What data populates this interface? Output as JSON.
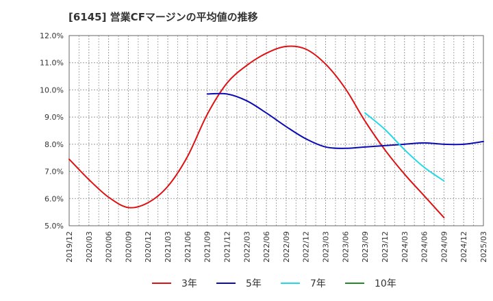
{
  "chart_data": {
    "type": "line",
    "title": "[6145]  営業CFマージンの平均値の推移",
    "xlabel": "",
    "ylabel": "",
    "ylim": [
      5.0,
      12.0
    ],
    "yticks": [
      5.0,
      6.0,
      7.0,
      8.0,
      9.0,
      10.0,
      11.0,
      12.0
    ],
    "ytick_labels": [
      "5.0%",
      "6.0%",
      "7.0%",
      "8.0%",
      "9.0%",
      "10.0%",
      "11.0%",
      "12.0%"
    ],
    "x_categories": [
      "2019/12",
      "2020/03",
      "2020/06",
      "2020/09",
      "2020/12",
      "2021/03",
      "2021/06",
      "2021/09",
      "2021/12",
      "2022/03",
      "2022/06",
      "2022/09",
      "2022/12",
      "2023/03",
      "2023/06",
      "2023/09",
      "2023/12",
      "2024/03",
      "2024/06",
      "2024/09",
      "2024/12",
      "2025/03"
    ],
    "grid": true,
    "legend_position": "bottom",
    "series": [
      {
        "name": "3年",
        "color": "#dd1111",
        "x_start_index": 0,
        "values": [
          7.45,
          6.7,
          6.05,
          5.67,
          5.85,
          6.45,
          7.55,
          9.1,
          10.25,
          10.9,
          11.35,
          11.6,
          11.5,
          10.95,
          10.05,
          8.85,
          7.8,
          6.9,
          6.1,
          5.3
        ]
      },
      {
        "name": "5年",
        "color": "#0a0ab4",
        "x_start_index": 7,
        "values": [
          9.85,
          9.85,
          9.6,
          9.15,
          8.65,
          8.2,
          7.9,
          7.85,
          7.9,
          7.95,
          8.0,
          8.05,
          8.0,
          8.0,
          8.1
        ]
      },
      {
        "name": "7年",
        "color": "#22d8e8",
        "x_start_index": 15,
        "values": [
          9.15,
          8.55,
          7.8,
          7.15,
          6.65
        ]
      },
      {
        "name": "10年",
        "color": "#228822",
        "x_start_index": 0,
        "values": []
      }
    ]
  }
}
